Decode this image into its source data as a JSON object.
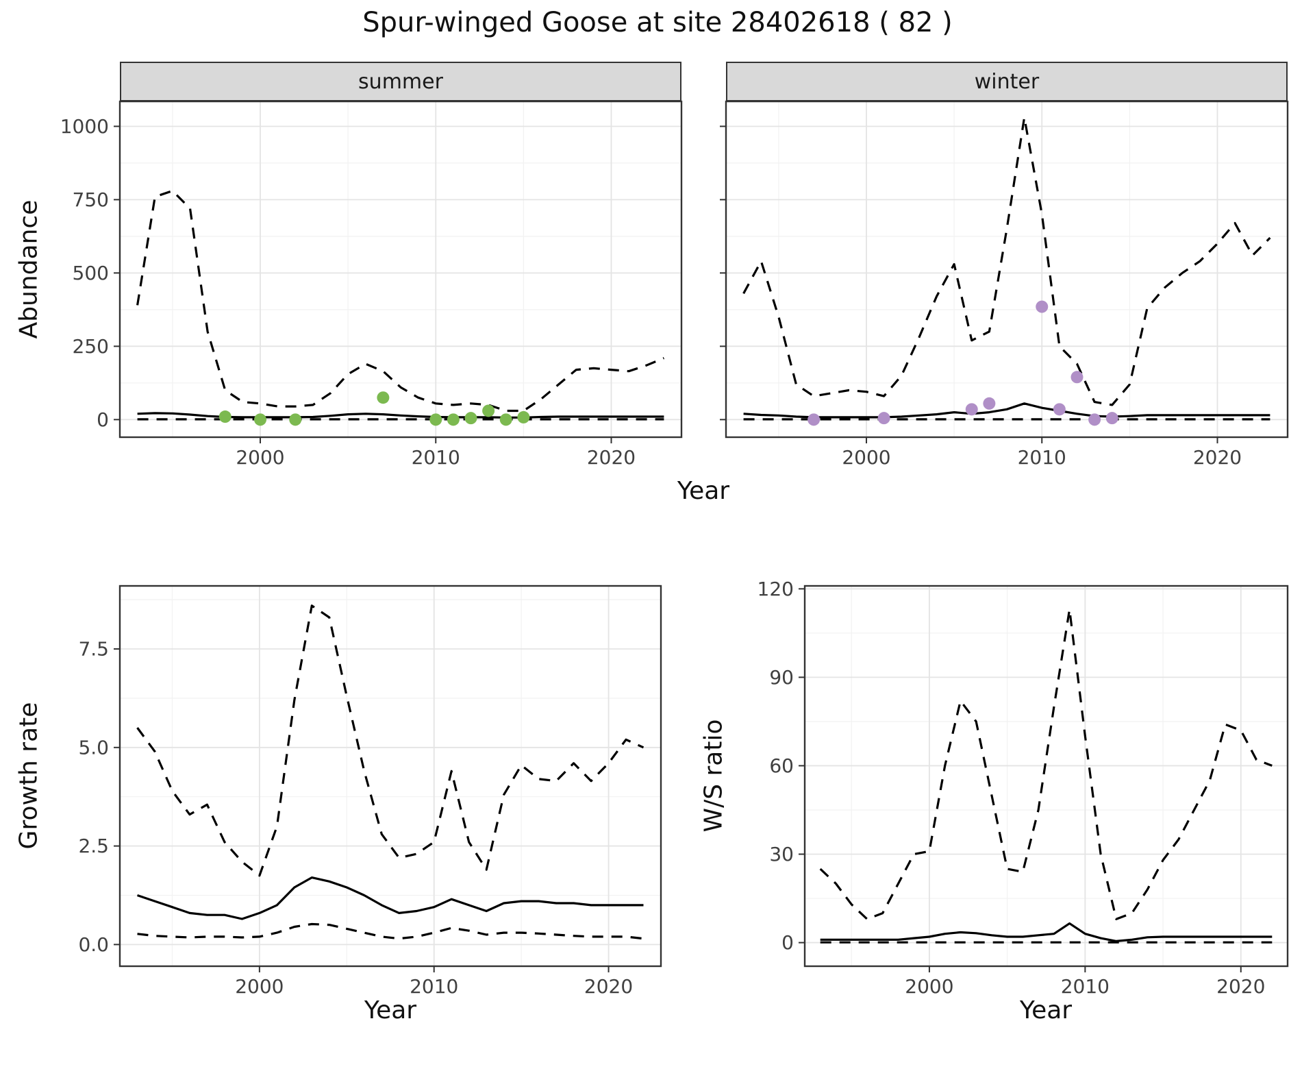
{
  "title": "Spur-winged Goose at site 28402618 ( 82 )",
  "colors": {
    "summer_points": "#7cb950",
    "winter_points": "#b08fc7",
    "line": "#000000",
    "grid_major": "#e4e4e4",
    "grid_minor": "#f2f2f2",
    "strip_bg": "#d9d9d9",
    "panel_border": "#333333",
    "tick_text": "#404040"
  },
  "labels": {
    "y_top": "Abundance",
    "x_top": "Year",
    "y_growth": "Growth rate",
    "x_growth": "Year",
    "y_ws": "W/S ratio",
    "x_ws": "Year",
    "facet_summer": "summer",
    "facet_winter": "winter"
  },
  "chart_data": [
    {
      "id": "abundance-summer",
      "type": "line",
      "facet": "summer",
      "title": "",
      "xlabel": "Year",
      "ylabel": "Abundance",
      "legend": "none",
      "grid": true,
      "x": [
        1993,
        1994,
        1995,
        1996,
        1997,
        1998,
        1999,
        2000,
        2001,
        2002,
        2003,
        2004,
        2005,
        2006,
        2007,
        2008,
        2009,
        2010,
        2011,
        2012,
        2013,
        2014,
        2015,
        2016,
        2017,
        2018,
        2019,
        2020,
        2021,
        2022,
        2023
      ],
      "series": [
        {
          "name": "upper_95ci",
          "style": "dashed",
          "values": [
            390,
            760,
            780,
            720,
            300,
            100,
            60,
            55,
            45,
            45,
            50,
            90,
            155,
            190,
            165,
            110,
            75,
            55,
            50,
            55,
            50,
            30,
            30,
            70,
            120,
            170,
            175,
            170,
            165,
            185,
            210
          ]
        },
        {
          "name": "modelled_abundance",
          "style": "solid",
          "values": [
            20,
            22,
            21,
            17,
            12,
            9,
            8,
            8,
            8,
            8,
            9,
            13,
            18,
            20,
            18,
            14,
            11,
            9,
            8,
            8,
            8,
            7,
            7,
            9,
            10,
            10,
            10,
            10,
            10,
            10,
            10
          ]
        },
        {
          "name": "lower_95ci",
          "style": "dashed",
          "values": [
            1,
            1,
            1,
            1,
            1,
            1,
            1,
            1,
            1,
            1,
            1,
            1,
            1,
            1,
            1,
            1,
            1,
            1,
            1,
            1,
            1,
            1,
            1,
            1,
            1,
            1,
            1,
            1,
            1,
            1,
            1
          ]
        }
      ],
      "points": {
        "name": "observed_counts",
        "color_key": "summer_points",
        "x": [
          1998,
          2000,
          2002,
          2007,
          2010,
          2011,
          2012,
          2013,
          2014,
          2015
        ],
        "y": [
          10,
          0,
          0,
          75,
          0,
          0,
          5,
          30,
          0,
          8
        ]
      },
      "xlim": [
        1992,
        2024
      ],
      "ylim": [
        -60,
        1085
      ],
      "xticks": [
        2000,
        2010,
        2020
      ],
      "xtick_labels": [
        "2000",
        "2010",
        "2020"
      ],
      "yticks": [
        0,
        250,
        500,
        750,
        1000
      ],
      "ytick_labels": [
        "0",
        "250",
        "500",
        "750",
        "1000"
      ],
      "show_y_labels": true
    },
    {
      "id": "abundance-winter",
      "type": "line",
      "facet": "winter",
      "title": "",
      "xlabel": "Year",
      "ylabel": "Abundance",
      "legend": "none",
      "grid": true,
      "x": [
        1993,
        1994,
        1995,
        1996,
        1997,
        1998,
        1999,
        2000,
        2001,
        2002,
        2003,
        2004,
        2005,
        2006,
        2007,
        2008,
        2009,
        2010,
        2011,
        2012,
        2013,
        2014,
        2015,
        2016,
        2017,
        2018,
        2019,
        2020,
        2021,
        2022,
        2023
      ],
      "series": [
        {
          "name": "upper_95ci",
          "style": "dashed",
          "values": [
            430,
            540,
            350,
            120,
            80,
            90,
            100,
            95,
            80,
            150,
            280,
            420,
            530,
            270,
            300,
            650,
            1030,
            700,
            250,
            190,
            60,
            50,
            120,
            380,
            450,
            500,
            540,
            600,
            670,
            560,
            620
          ]
        },
        {
          "name": "modelled_abundance",
          "style": "solid",
          "values": [
            20,
            16,
            14,
            10,
            8,
            8,
            8,
            8,
            8,
            10,
            14,
            18,
            25,
            20,
            25,
            35,
            55,
            40,
            30,
            20,
            12,
            10,
            12,
            15,
            15,
            15,
            15,
            15,
            15,
            15,
            15
          ]
        },
        {
          "name": "lower_95ci",
          "style": "dashed",
          "values": [
            1,
            1,
            1,
            1,
            1,
            1,
            1,
            1,
            1,
            1,
            1,
            1,
            1,
            1,
            1,
            1,
            1,
            1,
            1,
            1,
            1,
            1,
            1,
            1,
            1,
            1,
            1,
            1,
            1,
            1,
            1
          ]
        }
      ],
      "points": {
        "name": "observed_counts",
        "color_key": "winter_points",
        "x": [
          1997,
          2001,
          2006,
          2007,
          2010,
          2011,
          2012,
          2013,
          2014
        ],
        "y": [
          0,
          5,
          35,
          55,
          385,
          35,
          145,
          0,
          5
        ]
      },
      "xlim": [
        1992,
        2024
      ],
      "ylim": [
        -60,
        1085
      ],
      "xticks": [
        2000,
        2010,
        2020
      ],
      "xtick_labels": [
        "2000",
        "2010",
        "2020"
      ],
      "yticks": [
        0,
        250,
        500,
        750,
        1000
      ],
      "ytick_labels": [
        "0",
        "250",
        "500",
        "750",
        "1000"
      ],
      "show_y_labels": false
    },
    {
      "id": "growth-rate",
      "type": "line",
      "facet": "",
      "title": "",
      "xlabel": "Year",
      "ylabel": "Growth rate",
      "legend": "none",
      "grid": true,
      "x": [
        1993,
        1994,
        1995,
        1996,
        1997,
        1998,
        1999,
        2000,
        2001,
        2002,
        2003,
        2004,
        2005,
        2006,
        2007,
        2008,
        2009,
        2010,
        2011,
        2012,
        2013,
        2014,
        2015,
        2016,
        2017,
        2018,
        2019,
        2020,
        2021,
        2022
      ],
      "series": [
        {
          "name": "upper_95ci",
          "style": "dashed",
          "values": [
            5.5,
            4.9,
            3.9,
            3.3,
            3.55,
            2.6,
            2.1,
            1.75,
            3.0,
            6.2,
            8.6,
            8.3,
            6.3,
            4.4,
            2.8,
            2.2,
            2.3,
            2.6,
            4.4,
            2.6,
            1.9,
            3.8,
            4.55,
            4.2,
            4.15,
            4.6,
            4.15,
            4.6,
            5.2,
            5.0
          ]
        },
        {
          "name": "growth_rate",
          "style": "solid",
          "values": [
            1.25,
            1.1,
            0.95,
            0.8,
            0.75,
            0.75,
            0.65,
            0.8,
            1.0,
            1.45,
            1.7,
            1.6,
            1.45,
            1.25,
            1.0,
            0.8,
            0.85,
            0.95,
            1.15,
            1.0,
            0.85,
            1.05,
            1.1,
            1.1,
            1.05,
            1.05,
            1.0,
            1.0,
            1.0,
            1.0
          ]
        },
        {
          "name": "lower_95ci",
          "style": "dashed",
          "values": [
            0.27,
            0.22,
            0.2,
            0.18,
            0.2,
            0.2,
            0.18,
            0.2,
            0.3,
            0.45,
            0.52,
            0.5,
            0.4,
            0.3,
            0.2,
            0.15,
            0.2,
            0.3,
            0.42,
            0.35,
            0.25,
            0.3,
            0.3,
            0.28,
            0.25,
            0.22,
            0.2,
            0.2,
            0.2,
            0.15
          ]
        }
      ],
      "points": null,
      "xlim": [
        1992,
        2023
      ],
      "ylim": [
        -0.55,
        9.1
      ],
      "xticks": [
        2000,
        2010,
        2020
      ],
      "xtick_labels": [
        "2000",
        "2010",
        "2020"
      ],
      "yticks": [
        0,
        2.5,
        5,
        7.5
      ],
      "ytick_labels": [
        "0.0",
        "2.5",
        "5.0",
        "7.5"
      ],
      "show_y_labels": true
    },
    {
      "id": "ws-ratio",
      "type": "line",
      "facet": "",
      "title": "",
      "xlabel": "Year",
      "ylabel": "W/S ratio",
      "legend": "none",
      "grid": true,
      "x": [
        1993,
        1994,
        1995,
        1996,
        1997,
        1998,
        1999,
        2000,
        2001,
        2002,
        2003,
        2004,
        2005,
        2006,
        2007,
        2008,
        2009,
        2010,
        2011,
        2012,
        2013,
        2014,
        2015,
        2016,
        2017,
        2018,
        2019,
        2020,
        2021,
        2022
      ],
      "series": [
        {
          "name": "upper_95ci",
          "style": "dashed",
          "values": [
            25,
            20,
            13,
            8,
            10,
            20,
            30,
            31,
            60,
            82,
            75,
            50,
            25,
            24,
            45,
            80,
            113,
            70,
            30,
            8,
            10,
            18,
            28,
            35,
            45,
            55,
            74,
            72,
            62,
            60
          ]
        },
        {
          "name": "ws_ratio",
          "style": "solid",
          "values": [
            1,
            1,
            1,
            1,
            1,
            1,
            1.5,
            2,
            3,
            3.5,
            3.2,
            2.5,
            2,
            2,
            2.5,
            3,
            6.5,
            3,
            1.5,
            0.5,
            1,
            1.8,
            2,
            2,
            2,
            2,
            2,
            2,
            2,
            2
          ]
        },
        {
          "name": "lower_95ci",
          "style": "dashed",
          "values": [
            0.1,
            0.1,
            0.1,
            0.1,
            0.1,
            0.1,
            0.1,
            0.1,
            0.1,
            0.1,
            0.1,
            0.1,
            0.1,
            0.1,
            0.1,
            0.1,
            0.1,
            0.1,
            0.1,
            0.1,
            0.1,
            0.1,
            0.1,
            0.1,
            0.1,
            0.1,
            0.1,
            0.1,
            0.1,
            0.1
          ]
        }
      ],
      "points": null,
      "xlim": [
        1992,
        2023
      ],
      "ylim": [
        -8,
        121
      ],
      "xticks": [
        2000,
        2010,
        2020
      ],
      "xtick_labels": [
        "2000",
        "2010",
        "2020"
      ],
      "yticks": [
        0,
        30,
        60,
        90,
        120
      ],
      "ytick_labels": [
        "0",
        "30",
        "60",
        "90",
        "120"
      ],
      "show_y_labels": true
    }
  ]
}
